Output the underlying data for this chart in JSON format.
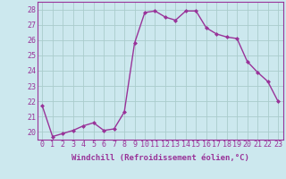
{
  "x": [
    0,
    1,
    2,
    3,
    4,
    5,
    6,
    7,
    8,
    9,
    10,
    11,
    12,
    13,
    14,
    15,
    16,
    17,
    18,
    19,
    20,
    21,
    22,
    23
  ],
  "y": [
    21.7,
    19.7,
    19.9,
    20.1,
    20.4,
    20.6,
    20.1,
    20.2,
    21.3,
    25.8,
    27.8,
    27.9,
    27.5,
    27.3,
    27.9,
    27.9,
    26.8,
    26.4,
    26.2,
    26.1,
    24.6,
    23.9,
    23.3,
    22.0
  ],
  "line_color": "#993399",
  "marker": "D",
  "marker_size": 2.0,
  "bg_color": "#cce8ee",
  "grid_color": "#aacccc",
  "xlabel": "Windchill (Refroidissement éolien,°C)",
  "xlim": [
    -0.5,
    23.5
  ],
  "ylim": [
    19.5,
    28.5
  ],
  "yticks": [
    20,
    21,
    22,
    23,
    24,
    25,
    26,
    27,
    28
  ],
  "xticks": [
    0,
    1,
    2,
    3,
    4,
    5,
    6,
    7,
    8,
    9,
    10,
    11,
    12,
    13,
    14,
    15,
    16,
    17,
    18,
    19,
    20,
    21,
    22,
    23
  ],
  "xtick_labels": [
    "0",
    "1",
    "2",
    "3",
    "4",
    "5",
    "6",
    "7",
    "8",
    "9",
    "10",
    "11",
    "12",
    "13",
    "14",
    "15",
    "16",
    "17",
    "18",
    "19",
    "20",
    "21",
    "22",
    "23"
  ],
  "xlabel_fontsize": 6.5,
  "tick_fontsize": 6.0,
  "linewidth": 1.0
}
